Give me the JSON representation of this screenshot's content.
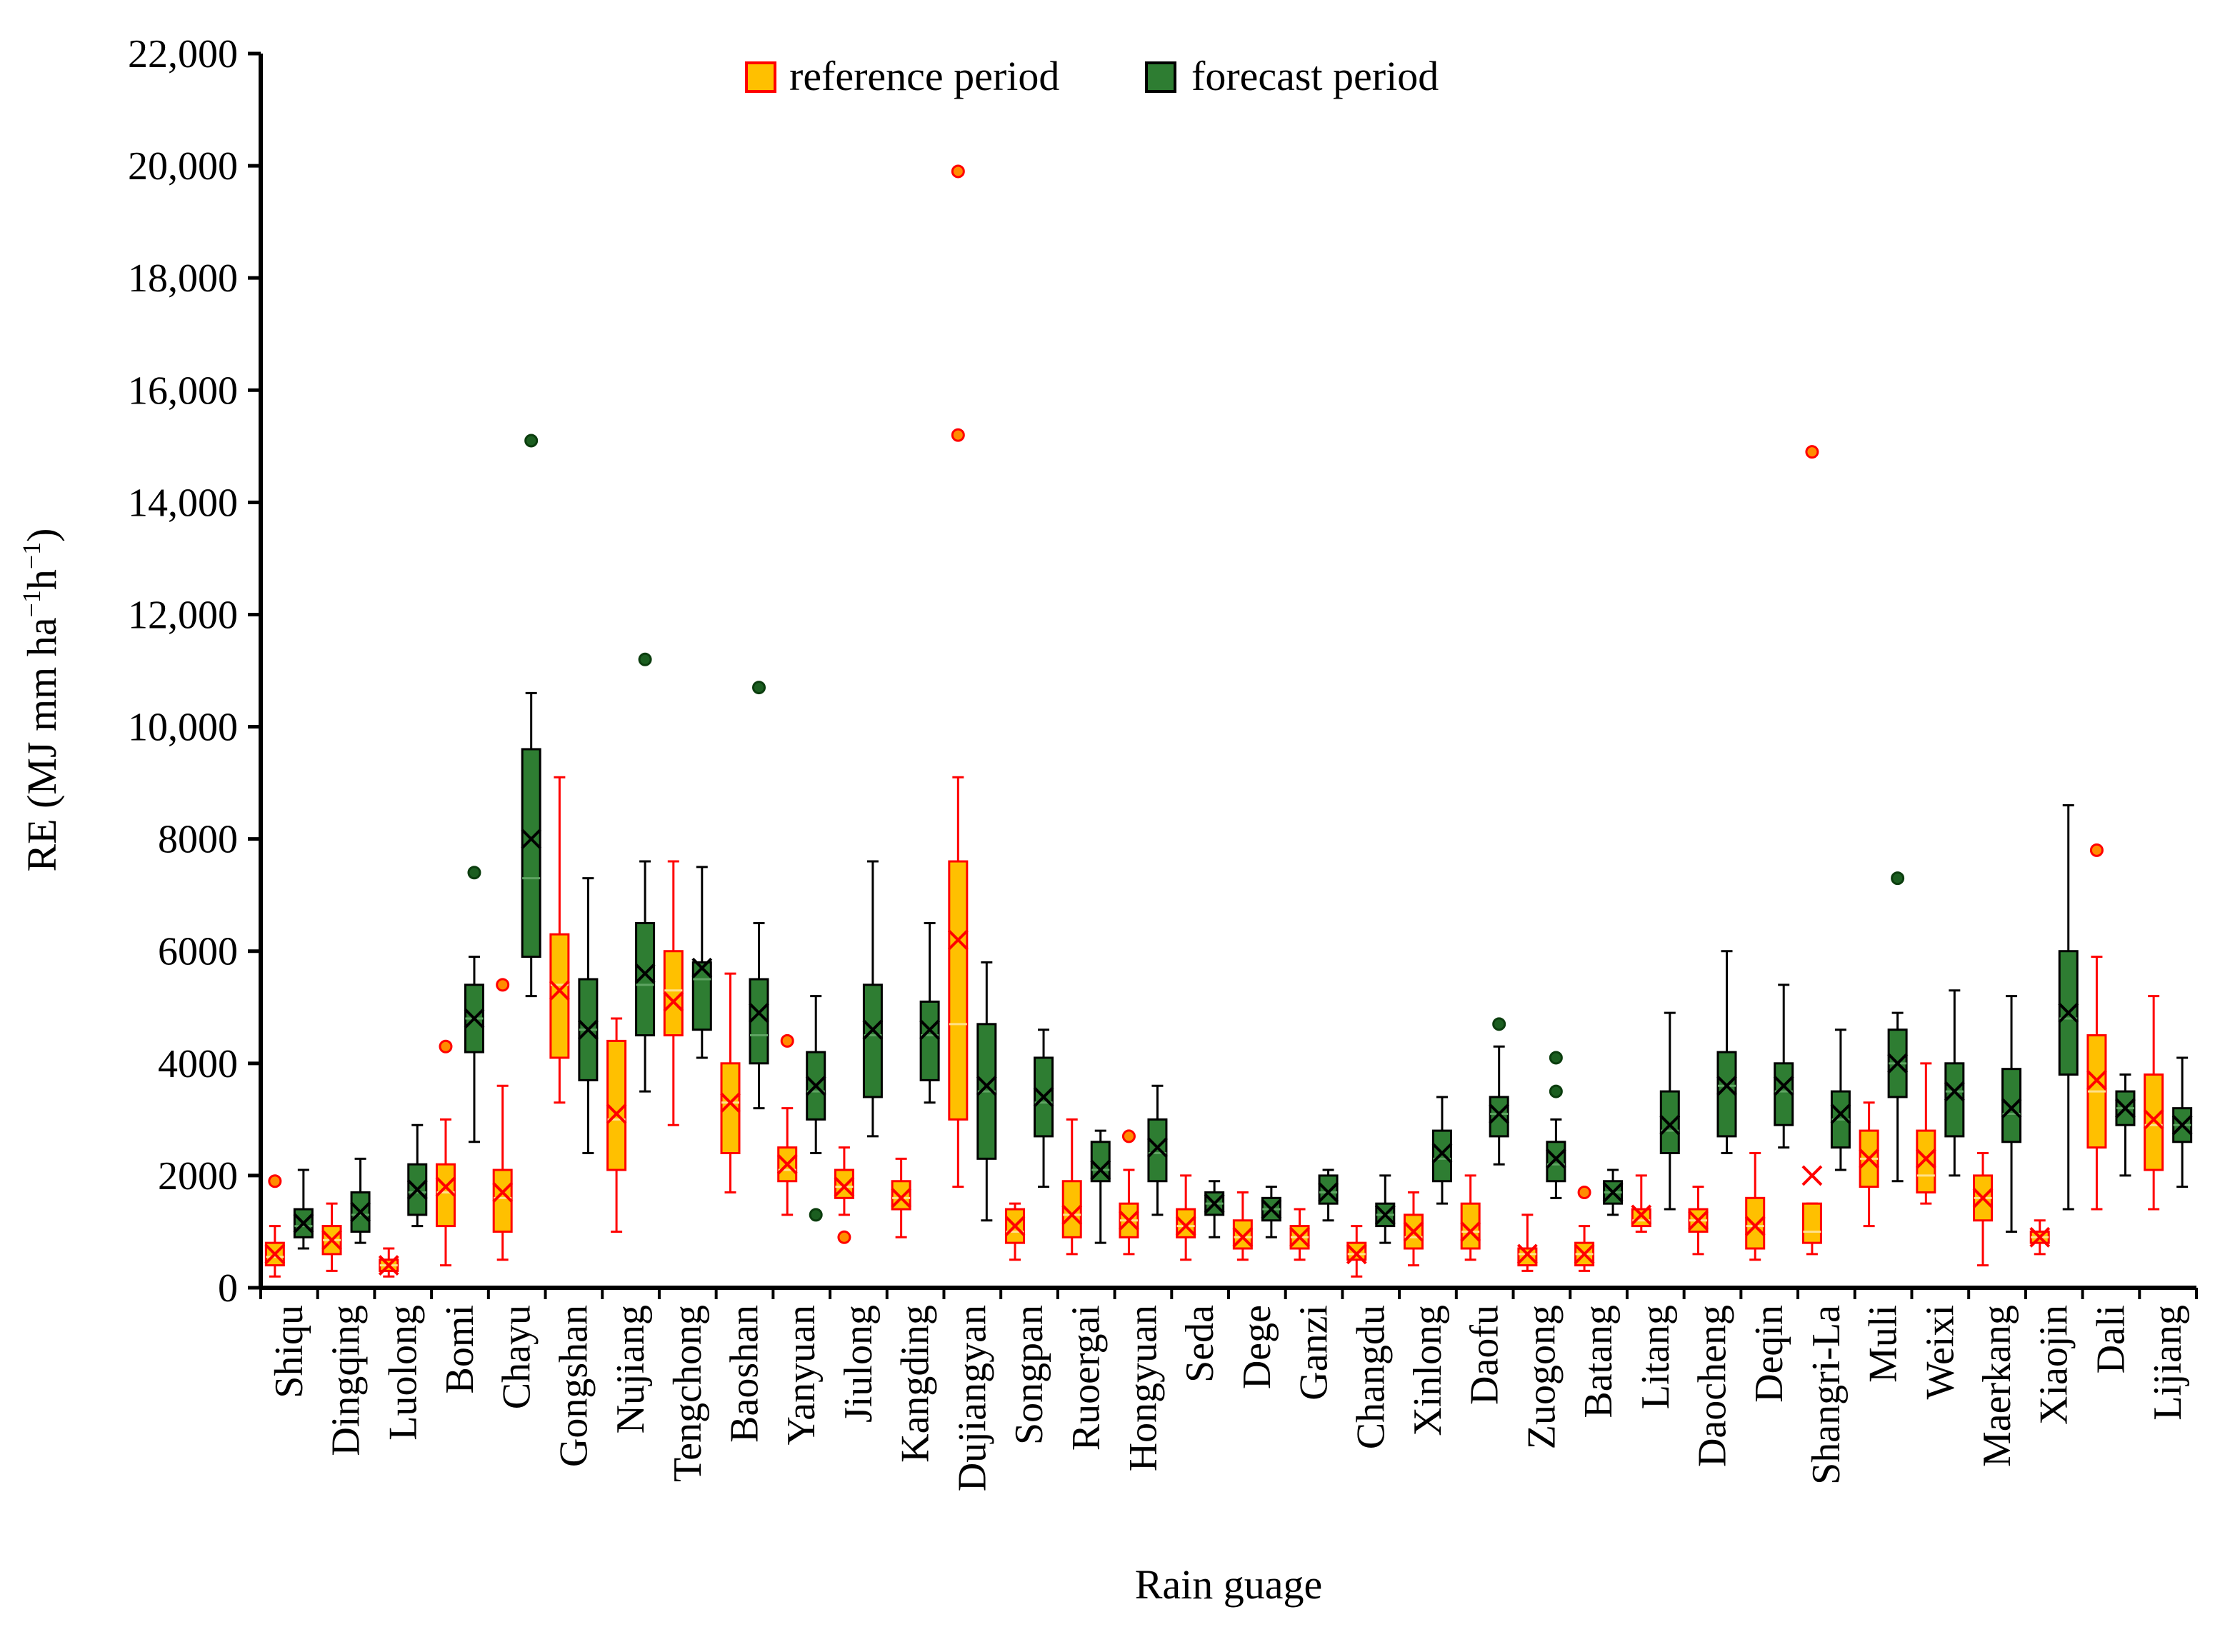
{
  "chart_data": {
    "type": "box",
    "title": "",
    "xlabel": "Rain guage",
    "ylabel": "RE (MJ mm ha",
    "ylabel_parts": [
      "RE (MJ mm ha",
      "−1",
      "h",
      "−1",
      ")"
    ],
    "ylim": [
      0,
      22000
    ],
    "yticks": [
      0,
      2000,
      4000,
      6000,
      8000,
      10000,
      12000,
      14000,
      16000,
      18000,
      20000,
      22000
    ],
    "ytick_labels": [
      "0",
      "2000",
      "4000",
      "6000",
      "8000",
      "10,000",
      "12,000",
      "14,000",
      "16,000",
      "18,000",
      "20,000",
      "22,000"
    ],
    "grid": false,
    "legend_position": "top-center",
    "colors": {
      "reference_fill": "#FFC000",
      "reference_edge": "#FF0000",
      "reference_whisker": "#FF0000",
      "forecast_fill": "#2E7D32",
      "forecast_edge": "#000000",
      "forecast_whisker": "#000000",
      "outlier_ref_fill": "#FF8C00",
      "outlier_ref_edge": "#FF0000",
      "outlier_fc_fill": "#1B5E20"
    },
    "series": [
      {
        "name": "reference period"
      },
      {
        "name": "forecast period"
      }
    ],
    "categories": [
      "Shiqu",
      "Dingqing",
      "Luolong",
      "Bomi",
      "Chayu",
      "Gongshan",
      "Nujiang",
      "Tengchong",
      "Baoshan",
      "Yanyuan",
      "Jiulong",
      "Kangding",
      "Dujiangyan",
      "Songpan",
      "Ruoergai",
      "Hongyuan",
      "Seda",
      "Dege",
      "Ganzi",
      "Changdu",
      "Xinlong",
      "Daofu",
      "Zuogong",
      "Batang",
      "Litang",
      "Daocheng",
      "Deqin",
      "Shangri-La",
      "Muli",
      "Weixi",
      "Maerkang",
      "Xiaojin",
      "Dali",
      "Lijiang"
    ],
    "boxes": [
      {
        "station": "Shiqu",
        "ref": {
          "min": 200,
          "q1": 400,
          "median": 550,
          "q3": 800,
          "max": 1100,
          "mean": 600,
          "outliers": [
            1900
          ]
        },
        "fc": {
          "min": 700,
          "q1": 900,
          "median": 1100,
          "q3": 1400,
          "max": 2100,
          "mean": 1150,
          "outliers": []
        }
      },
      {
        "station": "Dingqing",
        "ref": {
          "min": 300,
          "q1": 600,
          "median": 850,
          "q3": 1100,
          "max": 1500,
          "mean": 850,
          "outliers": []
        },
        "fc": {
          "min": 800,
          "q1": 1000,
          "median": 1300,
          "q3": 1700,
          "max": 2300,
          "mean": 1350,
          "outliers": []
        }
      },
      {
        "station": "Luolong",
        "ref": {
          "min": 200,
          "q1": 300,
          "median": 400,
          "q3": 500,
          "max": 700,
          "mean": 400,
          "outliers": []
        },
        "fc": {
          "min": 1100,
          "q1": 1300,
          "median": 1700,
          "q3": 2200,
          "max": 2900,
          "mean": 1750,
          "outliers": []
        }
      },
      {
        "station": "Bomi",
        "ref": {
          "min": 400,
          "q1": 1100,
          "median": 1700,
          "q3": 2200,
          "max": 3000,
          "mean": 1800,
          "outliers": [
            4300
          ]
        },
        "fc": {
          "min": 2600,
          "q1": 4200,
          "median": 4800,
          "q3": 5400,
          "max": 5900,
          "mean": 4800,
          "outliers": [
            7400
          ]
        }
      },
      {
        "station": "Chayu",
        "ref": {
          "min": 500,
          "q1": 1000,
          "median": 1600,
          "q3": 2100,
          "max": 3600,
          "mean": 1700,
          "outliers": [
            5400
          ]
        },
        "fc": {
          "min": 5200,
          "q1": 5900,
          "median": 7300,
          "q3": 9600,
          "max": 10600,
          "mean": 8000,
          "outliers": [
            15100
          ]
        }
      },
      {
        "station": "Gongshan",
        "ref": {
          "min": 3300,
          "q1": 4100,
          "median": 5400,
          "q3": 6300,
          "max": 9100,
          "mean": 5300,
          "outliers": []
        },
        "fc": {
          "min": 2400,
          "q1": 3700,
          "median": 4600,
          "q3": 5500,
          "max": 7300,
          "mean": 4600,
          "outliers": []
        }
      },
      {
        "station": "Nujiang",
        "ref": {
          "min": 1000,
          "q1": 2100,
          "median": 3000,
          "q3": 4400,
          "max": 4800,
          "mean": 3100,
          "outliers": []
        },
        "fc": {
          "min": 3500,
          "q1": 4500,
          "median": 5400,
          "q3": 6500,
          "max": 7600,
          "mean": 5600,
          "outliers": [
            11200
          ]
        }
      },
      {
        "station": "Tengchong",
        "ref": {
          "min": 2900,
          "q1": 4500,
          "median": 5300,
          "q3": 6000,
          "max": 7600,
          "mean": 5100,
          "outliers": []
        },
        "fc": {
          "min": 4100,
          "q1": 4600,
          "median": 5500,
          "q3": 5800,
          "max": 7500,
          "mean": 5700,
          "outliers": []
        }
      },
      {
        "station": "Baoshan",
        "ref": {
          "min": 1700,
          "q1": 2400,
          "median": 3300,
          "q3": 4000,
          "max": 5600,
          "mean": 3300,
          "outliers": []
        },
        "fc": {
          "min": 3200,
          "q1": 4000,
          "median": 4500,
          "q3": 5500,
          "max": 6500,
          "mean": 4900,
          "outliers": [
            10700
          ]
        }
      },
      {
        "station": "Yanyuan",
        "ref": {
          "min": 1300,
          "q1": 1900,
          "median": 2100,
          "q3": 2500,
          "max": 3200,
          "mean": 2200,
          "outliers": [
            4400
          ]
        },
        "fc": {
          "min": 2400,
          "q1": 3000,
          "median": 3500,
          "q3": 4200,
          "max": 5200,
          "mean": 3600,
          "outliers": [
            1300
          ]
        }
      },
      {
        "station": "Jiulong",
        "ref": {
          "min": 1300,
          "q1": 1600,
          "median": 1800,
          "q3": 2100,
          "max": 2500,
          "mean": 1800,
          "outliers": [
            900
          ]
        },
        "fc": {
          "min": 2700,
          "q1": 3400,
          "median": 4500,
          "q3": 5400,
          "max": 7600,
          "mean": 4600,
          "outliers": []
        }
      },
      {
        "station": "Kangding",
        "ref": {
          "min": 900,
          "q1": 1400,
          "median": 1600,
          "q3": 1900,
          "max": 2300,
          "mean": 1600,
          "outliers": []
        },
        "fc": {
          "min": 3300,
          "q1": 3700,
          "median": 4500,
          "q3": 5100,
          "max": 6500,
          "mean": 4600,
          "outliers": []
        }
      },
      {
        "station": "Dujiangyan",
        "ref": {
          "min": 1800,
          "q1": 3000,
          "median": 4700,
          "q3": 7600,
          "max": 9100,
          "mean": 6200,
          "outliers": [
            15200,
            19900
          ]
        },
        "fc": {
          "min": 1200,
          "q1": 2300,
          "median": 3500,
          "q3": 4700,
          "max": 5800,
          "mean": 3600,
          "outliers": []
        }
      },
      {
        "station": "Songpan",
        "ref": {
          "min": 500,
          "q1": 800,
          "median": 1000,
          "q3": 1400,
          "max": 1500,
          "mean": 1100,
          "outliers": []
        },
        "fc": {
          "min": 1800,
          "q1": 2700,
          "median": 3300,
          "q3": 4100,
          "max": 4600,
          "mean": 3400,
          "outliers": []
        }
      },
      {
        "station": "Ruoergai",
        "ref": {
          "min": 600,
          "q1": 900,
          "median": 1300,
          "q3": 1900,
          "max": 3000,
          "mean": 1300,
          "outliers": []
        },
        "fc": {
          "min": 800,
          "q1": 1900,
          "median": 2100,
          "q3": 2600,
          "max": 2800,
          "mean": 2100,
          "outliers": []
        }
      },
      {
        "station": "Hongyuan",
        "ref": {
          "min": 600,
          "q1": 900,
          "median": 1200,
          "q3": 1500,
          "max": 2100,
          "mean": 1200,
          "outliers": [
            2700
          ]
        },
        "fc": {
          "min": 1300,
          "q1": 1900,
          "median": 2400,
          "q3": 3000,
          "max": 3600,
          "mean": 2500,
          "outliers": []
        }
      },
      {
        "station": "Seda",
        "ref": {
          "min": 500,
          "q1": 900,
          "median": 1100,
          "q3": 1400,
          "max": 2000,
          "mean": 1100,
          "outliers": []
        },
        "fc": {
          "min": 900,
          "q1": 1300,
          "median": 1500,
          "q3": 1700,
          "max": 1900,
          "mean": 1500,
          "outliers": []
        }
      },
      {
        "station": "Dege",
        "ref": {
          "min": 500,
          "q1": 700,
          "median": 900,
          "q3": 1200,
          "max": 1700,
          "mean": 900,
          "outliers": []
        },
        "fc": {
          "min": 900,
          "q1": 1200,
          "median": 1400,
          "q3": 1600,
          "max": 1800,
          "mean": 1400,
          "outliers": []
        }
      },
      {
        "station": "Ganzi",
        "ref": {
          "min": 500,
          "q1": 700,
          "median": 900,
          "q3": 1100,
          "max": 1400,
          "mean": 900,
          "outliers": []
        },
        "fc": {
          "min": 1200,
          "q1": 1500,
          "median": 1700,
          "q3": 2000,
          "max": 2100,
          "mean": 1700,
          "outliers": []
        }
      },
      {
        "station": "Changdu",
        "ref": {
          "min": 200,
          "q1": 500,
          "median": 600,
          "q3": 800,
          "max": 1100,
          "mean": 600,
          "outliers": []
        },
        "fc": {
          "min": 800,
          "q1": 1100,
          "median": 1300,
          "q3": 1500,
          "max": 2000,
          "mean": 1300,
          "outliers": []
        }
      },
      {
        "station": "Xinlong",
        "ref": {
          "min": 400,
          "q1": 700,
          "median": 900,
          "q3": 1300,
          "max": 1700,
          "mean": 1000,
          "outliers": []
        },
        "fc": {
          "min": 1500,
          "q1": 1900,
          "median": 2300,
          "q3": 2800,
          "max": 3400,
          "mean": 2400,
          "outliers": []
        }
      },
      {
        "station": "Daofu",
        "ref": {
          "min": 500,
          "q1": 700,
          "median": 1000,
          "q3": 1500,
          "max": 2000,
          "mean": 1000,
          "outliers": []
        },
        "fc": {
          "min": 2200,
          "q1": 2700,
          "median": 3100,
          "q3": 3400,
          "max": 4300,
          "mean": 3100,
          "outliers": [
            4700
          ]
        }
      },
      {
        "station": "Zuogong",
        "ref": {
          "min": 300,
          "q1": 400,
          "median": 600,
          "q3": 700,
          "max": 1300,
          "mean": 600,
          "outliers": []
        },
        "fc": {
          "min": 1600,
          "q1": 1900,
          "median": 2200,
          "q3": 2600,
          "max": 3000,
          "mean": 2300,
          "outliers": [
            3500,
            4100
          ]
        }
      },
      {
        "station": "Batang",
        "ref": {
          "min": 300,
          "q1": 400,
          "median": 600,
          "q3": 800,
          "max": 1100,
          "mean": 600,
          "outliers": [
            1700
          ]
        },
        "fc": {
          "min": 1300,
          "q1": 1500,
          "median": 1700,
          "q3": 1900,
          "max": 2100,
          "mean": 1700,
          "outliers": []
        }
      },
      {
        "station": "Litang",
        "ref": {
          "min": 1000,
          "q1": 1100,
          "median": 1200,
          "q3": 1400,
          "max": 2000,
          "mean": 1300,
          "outliers": []
        },
        "fc": {
          "min": 1400,
          "q1": 2400,
          "median": 2800,
          "q3": 3500,
          "max": 4900,
          "mean": 2900,
          "outliers": []
        }
      },
      {
        "station": "Daocheng",
        "ref": {
          "min": 600,
          "q1": 1000,
          "median": 1200,
          "q3": 1400,
          "max": 1800,
          "mean": 1200,
          "outliers": []
        },
        "fc": {
          "min": 2400,
          "q1": 2700,
          "median": 3600,
          "q3": 4200,
          "max": 6000,
          "mean": 3600,
          "outliers": []
        }
      },
      {
        "station": "Deqin",
        "ref": {
          "min": 500,
          "q1": 700,
          "median": 1100,
          "q3": 1600,
          "max": 2400,
          "mean": 1100,
          "outliers": []
        },
        "fc": {
          "min": 2500,
          "q1": 2900,
          "median": 3500,
          "q3": 4000,
          "max": 5400,
          "mean": 3600,
          "outliers": []
        }
      },
      {
        "station": "Shangri-La",
        "ref": {
          "min": 600,
          "q1": 800,
          "median": 1000,
          "q3": 1500,
          "max": 1500,
          "mean": 2000,
          "outliers": [
            14900
          ]
        },
        "fc": {
          "min": 2100,
          "q1": 2500,
          "median": 3000,
          "q3": 3500,
          "max": 4600,
          "mean": 3100,
          "outliers": []
        }
      },
      {
        "station": "Muli",
        "ref": {
          "min": 1100,
          "q1": 1800,
          "median": 2300,
          "q3": 2800,
          "max": 3300,
          "mean": 2300,
          "outliers": []
        },
        "fc": {
          "min": 1900,
          "q1": 3400,
          "median": 4000,
          "q3": 4600,
          "max": 4900,
          "mean": 4000,
          "outliers": [
            7300
          ]
        }
      },
      {
        "station": "Weixi",
        "ref": {
          "min": 1500,
          "q1": 1700,
          "median": 2000,
          "q3": 2800,
          "max": 4000,
          "mean": 2300,
          "outliers": []
        },
        "fc": {
          "min": 2000,
          "q1": 2700,
          "median": 3500,
          "q3": 4000,
          "max": 5300,
          "mean": 3500,
          "outliers": []
        }
      },
      {
        "station": "Maerkang",
        "ref": {
          "min": 400,
          "q1": 1200,
          "median": 1600,
          "q3": 2000,
          "max": 2400,
          "mean": 1600,
          "outliers": []
        },
        "fc": {
          "min": 1000,
          "q1": 2600,
          "median": 3100,
          "q3": 3900,
          "max": 5200,
          "mean": 3200,
          "outliers": []
        }
      },
      {
        "station": "Xiaojin",
        "ref": {
          "min": 600,
          "q1": 800,
          "median": 900,
          "q3": 1000,
          "max": 1200,
          "mean": 900,
          "outliers": []
        },
        "fc": {
          "min": 1400,
          "q1": 3800,
          "median": 4800,
          "q3": 6000,
          "max": 8600,
          "mean": 4900,
          "outliers": []
        }
      },
      {
        "station": "Dali",
        "ref": {
          "min": 1400,
          "q1": 2500,
          "median": 3500,
          "q3": 4500,
          "max": 5900,
          "mean": 3700,
          "outliers": [
            7800
          ]
        },
        "fc": {
          "min": 2000,
          "q1": 2900,
          "median": 3200,
          "q3": 3500,
          "max": 3800,
          "mean": 3200,
          "outliers": []
        }
      },
      {
        "station": "Lijiang",
        "ref": {
          "min": 1400,
          "q1": 2100,
          "median": 2900,
          "q3": 3800,
          "max": 5200,
          "mean": 3000,
          "outliers": []
        },
        "fc": {
          "min": 1800,
          "q1": 2600,
          "median": 2900,
          "q3": 3200,
          "max": 4100,
          "mean": 2900,
          "outliers": []
        }
      }
    ]
  }
}
